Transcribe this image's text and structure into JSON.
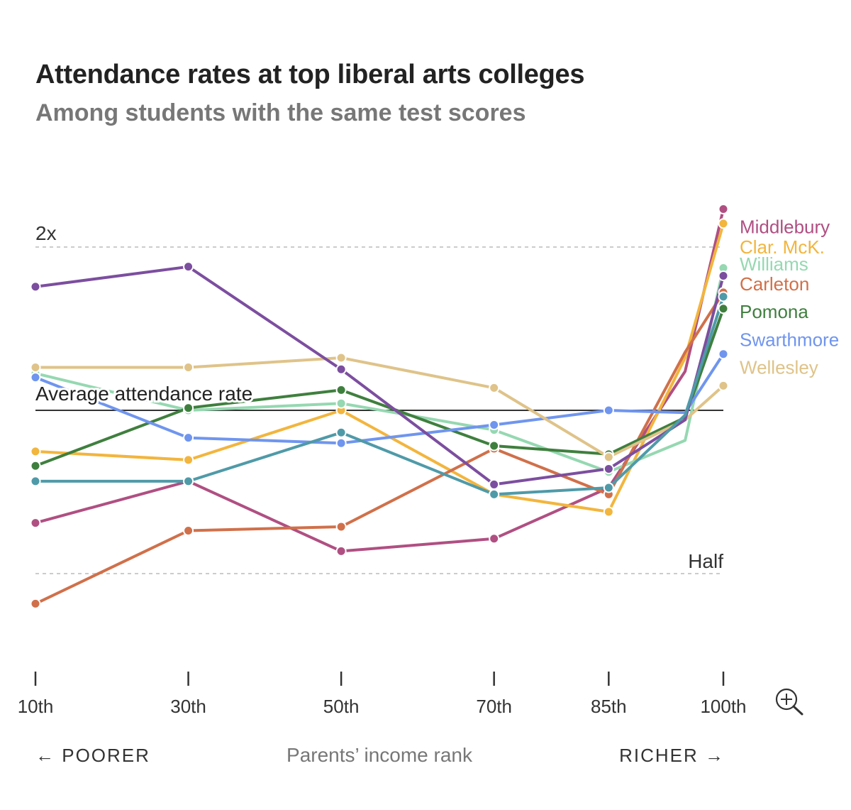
{
  "title": "Attendance rates at top liberal arts colleges",
  "subtitle": "Among students with the same test scores",
  "chart_data": {
    "type": "line",
    "x_positions": [
      10,
      30,
      50,
      70,
      85,
      95,
      100
    ],
    "x_ticks": [
      10,
      30,
      50,
      70,
      85,
      100
    ],
    "tick_labels": [
      "10th",
      "30th",
      "50th",
      "70th",
      "85th",
      "100th"
    ],
    "xlim": [
      10,
      100
    ],
    "y_scale": "log2",
    "ylim": [
      0.4,
      2.3
    ],
    "xlabel": "Parents’ income rank",
    "xlabel_left": "← POORER",
    "xlabel_right": "RICHER →",
    "reference_lines": [
      {
        "value": 1,
        "label": "Average attendance rate",
        "style": "solid"
      },
      {
        "value": 2,
        "label": "2x",
        "style": "dashed"
      },
      {
        "value": 0.5,
        "label": "Half",
        "style": "dashed"
      }
    ],
    "series": [
      {
        "name": "Middlebury",
        "color": "#b04f82",
        "label_value": 2.18,
        "values": [
          0.62,
          0.74,
          0.55,
          0.58,
          0.72,
          1.18,
          2.35
        ]
      },
      {
        "name": "Clar. McK.",
        "color": "#f2b53d",
        "label_value": 2.0,
        "values": [
          0.84,
          0.81,
          1.0,
          0.7,
          0.65,
          1.25,
          2.21
        ]
      },
      {
        "name": "Williams",
        "color": "#95d8b1",
        "label_value": 1.86,
        "values": [
          1.17,
          1.0,
          1.03,
          0.92,
          0.77,
          0.88,
          1.83
        ]
      },
      {
        "name": "Carleton",
        "color": "#d0704a",
        "label_value": 1.71,
        "values": [
          0.44,
          0.6,
          0.61,
          0.85,
          0.7,
          1.28,
          1.65
        ]
      },
      {
        "name": "Pomona",
        "color": "#3f7f3e",
        "label_value": 1.52,
        "values": [
          0.79,
          1.01,
          1.09,
          0.86,
          0.83,
          0.97,
          1.54
        ]
      },
      {
        "name": "Swarthmore",
        "color": "#6f95ee",
        "label_value": 1.35,
        "values": [
          1.15,
          0.89,
          0.87,
          0.94,
          1.0,
          0.99,
          1.27
        ]
      },
      {
        "name": "Wellesley",
        "color": "#dfc389",
        "label_value": 1.2,
        "values": [
          1.2,
          1.2,
          1.25,
          1.1,
          0.82,
          0.96,
          1.11
        ]
      },
      {
        "name": "",
        "color": "#7c4e9f",
        "values": [
          1.69,
          1.84,
          1.19,
          0.73,
          0.78,
          0.96,
          1.77
        ]
      },
      {
        "name": "",
        "color": "#4f9aa8",
        "values": [
          0.74,
          0.74,
          0.91,
          0.7,
          0.72,
          0.98,
          1.62
        ]
      }
    ]
  },
  "zoom_icon": "zoom-in-icon"
}
